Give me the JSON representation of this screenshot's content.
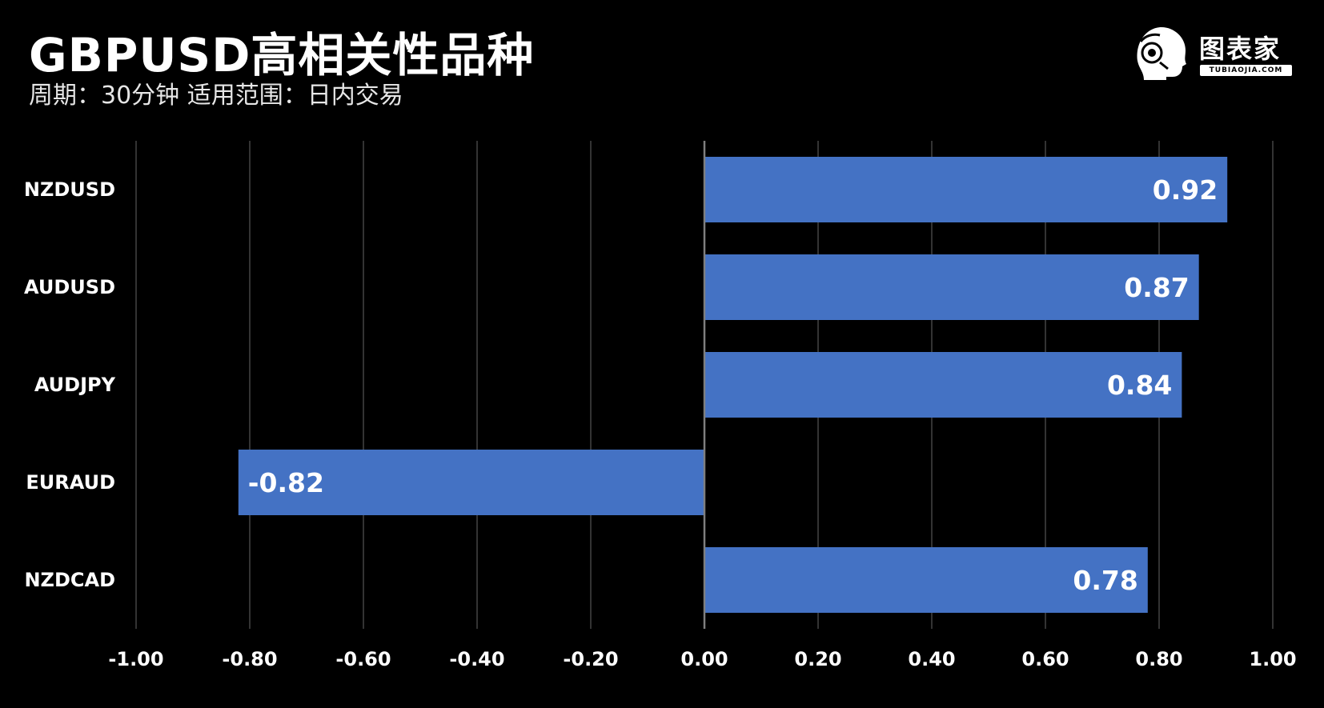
{
  "header": {
    "title": "GBPUSD高相关性品种",
    "subtitle": "周期：30分钟 适用范围：日内交易"
  },
  "logo": {
    "text": "图表家",
    "subtext": "TUBIAOJIA.COM",
    "icon": "robot-head-icon"
  },
  "colors": {
    "background": "#000000",
    "bar": "#4472C4",
    "grid": "#444444",
    "zero_line": "#7f7f7f",
    "text": "#ffffff"
  },
  "chart_data": {
    "type": "bar",
    "orientation": "horizontal",
    "categories": [
      "NZDUSD",
      "AUDUSD",
      "AUDJPY",
      "EURAUD",
      "NZDCAD"
    ],
    "values": [
      0.92,
      0.87,
      0.84,
      -0.82,
      0.78
    ],
    "data_labels": [
      "0.92",
      "0.87",
      "0.84",
      "-0.82",
      "0.78"
    ],
    "xlim": [
      -1.0,
      1.0
    ],
    "x_ticks": [
      -1.0,
      -0.8,
      -0.6,
      -0.4,
      -0.2,
      0.0,
      0.2,
      0.4,
      0.6,
      0.8,
      1.0
    ],
    "x_tick_labels": [
      "-1.00",
      "-0.80",
      "-0.60",
      "-0.40",
      "-0.20",
      "0.00",
      "0.20",
      "0.40",
      "0.60",
      "0.80",
      "1.00"
    ],
    "grid": "vertical",
    "legend": "none",
    "title": "",
    "xlabel": "",
    "ylabel": ""
  }
}
